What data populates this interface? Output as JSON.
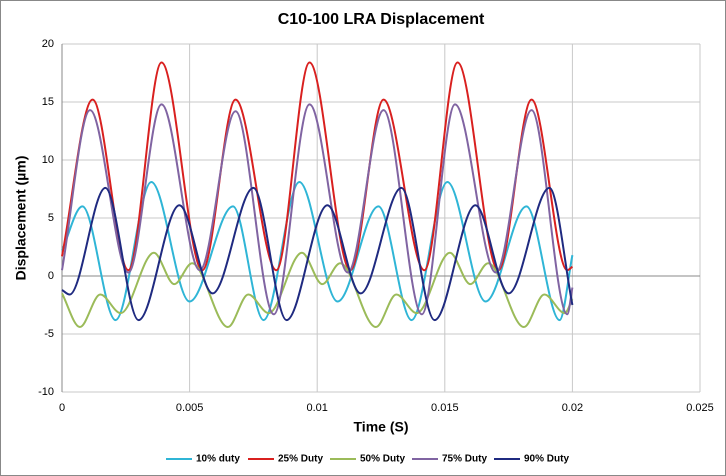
{
  "chart_data": {
    "type": "line",
    "title": "C10-100 LRA Displacement",
    "x_label": "Time (S)",
    "y_label": "Displacement (µm)",
    "xlim": [
      0,
      0.025
    ],
    "xticks": [
      0,
      0.005,
      0.01,
      0.015,
      0.02,
      0.025
    ],
    "ylim": [
      -10,
      20
    ],
    "yticks": [
      -10,
      -5,
      0,
      5,
      10,
      15,
      20
    ],
    "grid": true,
    "legend": "bottom",
    "series": [
      {
        "name": "10% duty",
        "color": "#2fb5d6",
        "x": [
          0,
          0.0008,
          0.0021,
          0.0035,
          0.005,
          0.0067,
          0.0079,
          0.0093,
          0.0108,
          0.0124,
          0.0137,
          0.0151,
          0.0166,
          0.0182,
          0.0195,
          0.02
        ],
        "values": [
          2.2,
          6.0,
          -3.8,
          8.1,
          -2.2,
          6.0,
          -3.8,
          8.1,
          -2.2,
          6.0,
          -3.8,
          8.1,
          -2.2,
          6.0,
          -3.8,
          1.8
        ]
      },
      {
        "name": "25% Duty",
        "color": "#d9201f",
        "x": [
          0,
          0.0012,
          0.0026,
          0.0039,
          0.0055,
          0.0068,
          0.0084,
          0.0097,
          0.0113,
          0.0126,
          0.0142,
          0.0155,
          0.0171,
          0.0184,
          0.0198,
          0.02
        ],
        "values": [
          1.7,
          15.2,
          0.5,
          18.4,
          0.5,
          15.2,
          0.5,
          18.4,
          0.5,
          15.2,
          0.5,
          18.4,
          0.5,
          15.2,
          0.5,
          0.8
        ]
      },
      {
        "name": "50% Duty",
        "color": "#9bbb59",
        "x": [
          0,
          0.0007,
          0.0015,
          0.0023,
          0.0036,
          0.0044,
          0.0051,
          0.0065,
          0.0073,
          0.0081,
          0.0094,
          0.0102,
          0.0109,
          0.0123,
          0.0131,
          0.0139,
          0.0152,
          0.016,
          0.0167,
          0.0181,
          0.0189,
          0.0197,
          0.02
        ],
        "values": [
          -1.5,
          -4.4,
          -1.6,
          -3.2,
          2.0,
          -0.7,
          1.1,
          -4.4,
          -1.6,
          -3.2,
          2.0,
          -0.7,
          1.1,
          -4.4,
          -1.6,
          -3.2,
          2.0,
          -0.7,
          1.1,
          -4.4,
          -1.6,
          -3.2,
          -2.0
        ]
      },
      {
        "name": "75% Duty",
        "color": "#8064a2",
        "x": [
          0,
          0.0011,
          0.0026,
          0.0039,
          0.0054,
          0.0068,
          0.0083,
          0.0097,
          0.0112,
          0.0126,
          0.0141,
          0.0154,
          0.017,
          0.0184,
          0.0198,
          0.02
        ],
        "values": [
          0.5,
          14.3,
          0.3,
          14.8,
          0.5,
          14.2,
          -3.3,
          14.8,
          0.3,
          14.3,
          -3.3,
          14.8,
          0.3,
          14.3,
          -3.3,
          -1.0
        ]
      },
      {
        "name": "90% Duty",
        "color": "#1f2a80",
        "x": [
          0,
          0.0003,
          0.0017,
          0.003,
          0.0046,
          0.0059,
          0.0075,
          0.0088,
          0.0104,
          0.0117,
          0.0133,
          0.0146,
          0.0162,
          0.0175,
          0.0191,
          0.02
        ],
        "values": [
          -1.2,
          -1.6,
          7.6,
          -3.8,
          6.1,
          -1.5,
          7.6,
          -3.8,
          6.1,
          -1.5,
          7.6,
          -3.8,
          6.1,
          -1.5,
          7.6,
          -2.5
        ]
      }
    ]
  }
}
